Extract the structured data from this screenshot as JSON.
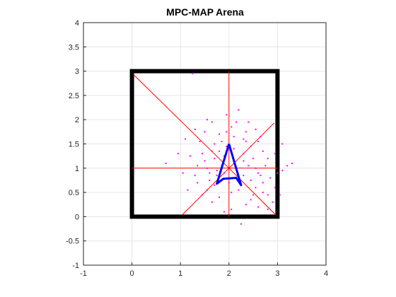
{
  "chart_data": {
    "type": "scatter",
    "title": "MPC-MAP Arena",
    "xlabel": "",
    "ylabel": "",
    "xlim": [
      -1,
      4
    ],
    "ylim": [
      -1,
      4
    ],
    "grid": true,
    "xticks": [
      -1,
      0,
      1,
      2,
      3,
      4
    ],
    "yticks": [
      -1,
      -0.5,
      0,
      0.5,
      1,
      1.5,
      2,
      2.5,
      3,
      3.5,
      4
    ],
    "xtick_labels": [
      "-1",
      "0",
      "1",
      "2",
      "3",
      "4"
    ],
    "ytick_labels": [
      "-1",
      "-0.5",
      "0",
      "0.5",
      "1",
      "1.5",
      "2",
      "2.5",
      "3",
      "3.5",
      "4"
    ],
    "walls": {
      "color": "#000000",
      "points": [
        [
          0,
          3
        ],
        [
          3,
          3
        ],
        [
          3,
          0
        ],
        [
          0,
          0
        ],
        [
          0,
          3
        ]
      ]
    },
    "lidar_rays": {
      "color": "#ff0000",
      "origin": [
        2,
        1
      ],
      "endpoints": [
        [
          3,
          1
        ],
        [
          2.93,
          1.93
        ],
        [
          2,
          3
        ],
        [
          0.03,
          2.93
        ],
        [
          0,
          1
        ],
        [
          1.03,
          0.03
        ],
        [
          2,
          0
        ],
        [
          2.97,
          0.03
        ]
      ]
    },
    "robot": {
      "color": "#0000ff",
      "outline": [
        [
          2,
          1.5
        ],
        [
          2.25,
          0.65
        ],
        [
          2.15,
          0.8
        ],
        [
          1.88,
          0.78
        ],
        [
          1.75,
          0.68
        ],
        [
          2,
          1.5
        ]
      ]
    },
    "particles": {
      "color": "#ff00ff",
      "points": [
        [
          1.25,
          2.95
        ],
        [
          1.65,
          1.35
        ],
        [
          1.7,
          1.5
        ],
        [
          1.75,
          0.95
        ],
        [
          1.55,
          1.0
        ],
        [
          1.45,
          1.3
        ],
        [
          1.8,
          1.7
        ],
        [
          1.6,
          0.75
        ],
        [
          1.9,
          1.25
        ],
        [
          2.1,
          1.4
        ],
        [
          2.3,
          1.6
        ],
        [
          2.5,
          1.2
        ],
        [
          2.6,
          0.9
        ],
        [
          2.75,
          1.05
        ],
        [
          2.85,
          0.8
        ],
        [
          2.95,
          1.3
        ],
        [
          3.1,
          1.5
        ],
        [
          3.2,
          1.05
        ],
        [
          3.3,
          1.1
        ],
        [
          2.2,
          2.2
        ],
        [
          2.4,
          1.95
        ],
        [
          2.35,
          1.75
        ],
        [
          1.55,
          2.0
        ],
        [
          1.3,
          1.8
        ],
        [
          1.1,
          1.6
        ],
        [
          0.7,
          1.1
        ],
        [
          1.05,
          0.9
        ],
        [
          1.35,
          0.7
        ],
        [
          1.45,
          0.45
        ],
        [
          1.65,
          0.3
        ],
        [
          1.9,
          0.1
        ],
        [
          2.05,
          0.15
        ],
        [
          2.25,
          -0.15
        ],
        [
          2.45,
          0.35
        ],
        [
          2.7,
          0.5
        ],
        [
          2.8,
          0.15
        ],
        [
          2.9,
          0.3
        ],
        [
          3.05,
          0.45
        ],
        [
          2.95,
          0.6
        ],
        [
          2.55,
          0.6
        ],
        [
          2.3,
          0.85
        ],
        [
          2.15,
          1.0
        ],
        [
          2.45,
          1.45
        ],
        [
          2.65,
          1.65
        ],
        [
          2.05,
          1.85
        ],
        [
          1.95,
          2.1
        ],
        [
          1.85,
          1.05
        ],
        [
          1.7,
          1.2
        ],
        [
          1.5,
          1.15
        ],
        [
          1.35,
          1.05
        ],
        [
          1.2,
          1.25
        ],
        [
          0.95,
          1.3
        ],
        [
          1.15,
          0.55
        ],
        [
          1.55,
          0.55
        ],
        [
          1.8,
          0.4
        ],
        [
          2.35,
          0.25
        ],
        [
          2.6,
          0.2
        ],
        [
          3.1,
          0.95
        ],
        [
          2.7,
          1.35
        ],
        [
          2.55,
          1.8
        ],
        [
          2.3,
          1.3
        ],
        [
          2.05,
          0.5
        ],
        [
          1.75,
          0.85
        ],
        [
          1.65,
          1.95
        ],
        [
          2.1,
          1.65
        ],
        [
          1.95,
          1.45
        ],
        [
          2.4,
          1.05
        ],
        [
          2.55,
          1.0
        ],
        [
          2.8,
          1.2
        ],
        [
          1.85,
          1.55
        ],
        [
          1.6,
          0.9
        ],
        [
          1.4,
          1.55
        ],
        [
          2.2,
          0.55
        ],
        [
          2.45,
          0.75
        ],
        [
          2.65,
          0.85
        ],
        [
          2.0,
          0.7
        ],
        [
          1.9,
          0.9
        ],
        [
          2.3,
          1.15
        ],
        [
          2.7,
          0.7
        ],
        [
          3.0,
          0.9
        ],
        [
          1.5,
          1.75
        ],
        [
          2.15,
          1.95
        ],
        [
          2.6,
          1.55
        ],
        [
          1.3,
          0.85
        ],
        [
          1.7,
          0.65
        ],
        [
          2.8,
          0.45
        ],
        [
          1.95,
          1.75
        ],
        [
          2.35,
          1.55
        ],
        [
          1.8,
          1.35
        ],
        [
          2.5,
          0.45
        ]
      ]
    }
  }
}
